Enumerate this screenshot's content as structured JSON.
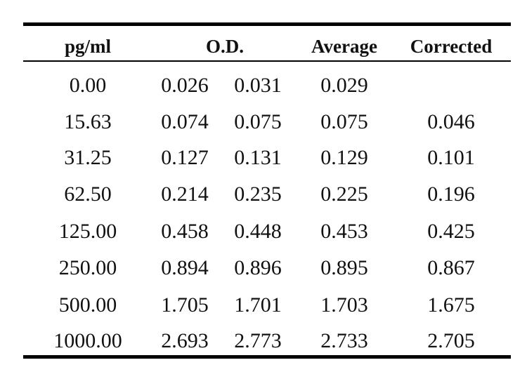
{
  "table": {
    "headers": {
      "conc": "pg/ml",
      "od": "O.D.",
      "average": "Average",
      "corrected": "Corrected"
    },
    "rows": [
      {
        "conc": "0.00",
        "od1": "0.026",
        "od2": "0.031",
        "average": "0.029",
        "corrected": ""
      },
      {
        "conc": "15.63",
        "od1": "0.074",
        "od2": "0.075",
        "average": "0.075",
        "corrected": "0.046"
      },
      {
        "conc": "31.25",
        "od1": "0.127",
        "od2": "0.131",
        "average": "0.129",
        "corrected": "0.101"
      },
      {
        "conc": "62.50",
        "od1": "0.214",
        "od2": "0.235",
        "average": "0.225",
        "corrected": "0.196"
      },
      {
        "conc": "125.00",
        "od1": "0.458",
        "od2": "0.448",
        "average": "0.453",
        "corrected": "0.425"
      },
      {
        "conc": "250.00",
        "od1": "0.894",
        "od2": "0.896",
        "average": "0.895",
        "corrected": "0.867"
      },
      {
        "conc": "500.00",
        "od1": "1.705",
        "od2": "1.701",
        "average": "1.703",
        "corrected": "1.675"
      },
      {
        "conc": "1000.00",
        "od1": "2.693",
        "od2": "2.773",
        "average": "2.733",
        "corrected": "2.705"
      }
    ]
  }
}
